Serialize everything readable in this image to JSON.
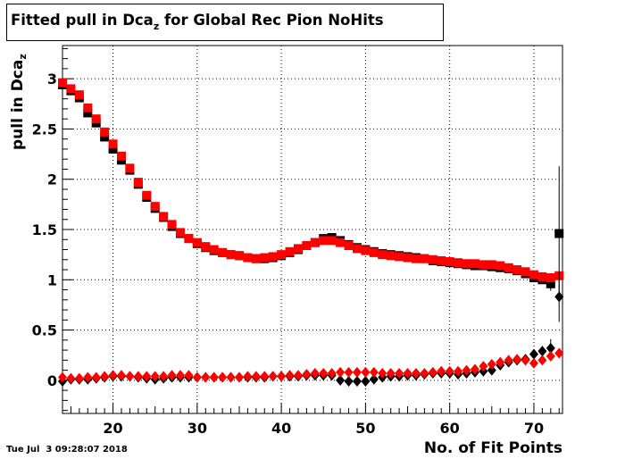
{
  "chart_data": {
    "type": "scatter",
    "title_main": "Fitted pull in Dca",
    "title_sub": "z",
    "title_rest": " for Global Rec Pion NoHits",
    "ylabel_main": "pull in Dca",
    "ylabel_sub": "z",
    "xlabel": "No. of Fit Points",
    "xlim": [
      14,
      73.4
    ],
    "ylim": [
      -0.33,
      3.33
    ],
    "grid": true,
    "x_ticks": [
      20,
      30,
      40,
      50,
      60,
      70
    ],
    "y_ticks": [
      0,
      0.5,
      1,
      1.5,
      2,
      2.5,
      3
    ],
    "x_tick_labels": [
      "20",
      "30",
      "40",
      "50",
      "60",
      "70"
    ],
    "y_tick_labels": [
      "0",
      "0.5",
      "1",
      "1.5",
      "2",
      "2.5",
      "3"
    ],
    "series": [
      {
        "marker": "square",
        "color": "#000000",
        "x": [
          14,
          15,
          16,
          17,
          18,
          19,
          20,
          21,
          22,
          23,
          24,
          25,
          26,
          27,
          28,
          29,
          30,
          31,
          32,
          33,
          34,
          35,
          36,
          37,
          38,
          39,
          40,
          41,
          42,
          43,
          44,
          45,
          46,
          47,
          48,
          49,
          50,
          51,
          52,
          53,
          54,
          55,
          56,
          57,
          58,
          59,
          60,
          61,
          62,
          63,
          64,
          65,
          66,
          67,
          68,
          69,
          70,
          71,
          72,
          73
        ],
        "y": [
          2.94,
          2.88,
          2.81,
          2.66,
          2.56,
          2.42,
          2.3,
          2.19,
          2.09,
          1.95,
          1.82,
          1.71,
          1.62,
          1.53,
          1.46,
          1.41,
          1.36,
          1.32,
          1.29,
          1.27,
          1.25,
          1.24,
          1.22,
          1.21,
          1.21,
          1.22,
          1.24,
          1.27,
          1.3,
          1.34,
          1.37,
          1.41,
          1.42,
          1.39,
          1.35,
          1.32,
          1.3,
          1.28,
          1.26,
          1.25,
          1.24,
          1.23,
          1.22,
          1.21,
          1.19,
          1.18,
          1.17,
          1.16,
          1.15,
          1.14,
          1.14,
          1.13,
          1.12,
          1.11,
          1.09,
          1.06,
          1.02,
          1.0,
          0.96,
          1.46
        ],
        "err": [
          0,
          0,
          0,
          0,
          0,
          0,
          0,
          0,
          0,
          0,
          0,
          0,
          0,
          0,
          0,
          0,
          0,
          0,
          0,
          0,
          0,
          0,
          0,
          0,
          0,
          0,
          0,
          0,
          0,
          0,
          0,
          0,
          0,
          0,
          0,
          0,
          0,
          0,
          0,
          0,
          0,
          0,
          0,
          0,
          0,
          0,
          0,
          0,
          0,
          0,
          0,
          0,
          0,
          0,
          0,
          0.02,
          0.03,
          0.04,
          0.07,
          0.67
        ]
      },
      {
        "marker": "square",
        "color": "#ff0000",
        "x": [
          14,
          15,
          16,
          17,
          18,
          19,
          20,
          21,
          22,
          23,
          24,
          25,
          26,
          27,
          28,
          29,
          30,
          31,
          32,
          33,
          34,
          35,
          36,
          37,
          38,
          39,
          40,
          41,
          42,
          43,
          44,
          45,
          46,
          47,
          48,
          49,
          50,
          51,
          52,
          53,
          54,
          55,
          56,
          57,
          58,
          59,
          60,
          61,
          62,
          63,
          64,
          65,
          66,
          67,
          68,
          69,
          70,
          71,
          72,
          73
        ],
        "y": [
          2.96,
          2.9,
          2.84,
          2.71,
          2.6,
          2.47,
          2.35,
          2.23,
          2.11,
          1.97,
          1.84,
          1.73,
          1.63,
          1.55,
          1.47,
          1.41,
          1.37,
          1.33,
          1.3,
          1.27,
          1.25,
          1.24,
          1.22,
          1.21,
          1.22,
          1.23,
          1.25,
          1.28,
          1.31,
          1.34,
          1.37,
          1.39,
          1.39,
          1.37,
          1.34,
          1.31,
          1.29,
          1.27,
          1.25,
          1.24,
          1.23,
          1.22,
          1.21,
          1.21,
          1.2,
          1.19,
          1.18,
          1.17,
          1.16,
          1.16,
          1.15,
          1.15,
          1.14,
          1.12,
          1.1,
          1.08,
          1.05,
          1.03,
          1.02,
          1.04
        ],
        "err": []
      },
      {
        "marker": "diamond",
        "color": "#000000",
        "x": [
          14,
          15,
          16,
          17,
          18,
          19,
          20,
          21,
          22,
          23,
          24,
          25,
          26,
          27,
          28,
          29,
          30,
          31,
          32,
          33,
          34,
          35,
          36,
          37,
          38,
          39,
          40,
          41,
          42,
          43,
          44,
          45,
          46,
          47,
          48,
          49,
          50,
          51,
          52,
          53,
          54,
          55,
          56,
          57,
          58,
          59,
          60,
          61,
          62,
          63,
          64,
          65,
          66,
          67,
          68,
          69,
          70,
          71,
          72,
          73
        ],
        "y": [
          -0.01,
          0.01,
          0.01,
          0.01,
          0.02,
          0.03,
          0.04,
          0.04,
          0.04,
          0.03,
          0.02,
          0.01,
          0.02,
          0.03,
          0.03,
          0.03,
          0.03,
          0.03,
          0.03,
          0.03,
          0.03,
          0.03,
          0.03,
          0.03,
          0.03,
          0.04,
          0.04,
          0.04,
          0.04,
          0.05,
          0.05,
          0.05,
          0.05,
          0.0,
          -0.01,
          -0.01,
          -0.01,
          0.01,
          0.03,
          0.04,
          0.04,
          0.05,
          0.05,
          0.06,
          0.07,
          0.07,
          0.07,
          0.06,
          0.07,
          0.08,
          0.09,
          0.1,
          0.15,
          0.18,
          0.2,
          0.21,
          0.26,
          0.29,
          0.32,
          0.83
        ],
        "err": [
          0,
          0,
          0,
          0,
          0,
          0,
          0,
          0,
          0,
          0,
          0,
          0,
          0,
          0,
          0,
          0,
          0,
          0,
          0,
          0,
          0,
          0,
          0,
          0,
          0,
          0,
          0,
          0,
          0,
          0,
          0,
          0,
          0,
          0,
          0,
          0,
          0,
          0,
          0,
          0,
          0,
          0,
          0,
          0,
          0,
          0,
          0,
          0,
          0,
          0,
          0,
          0,
          0,
          0,
          0,
          0,
          0.03,
          0.05,
          0.09,
          0.25
        ]
      },
      {
        "marker": "diamond",
        "color": "#ff0000",
        "x": [
          14,
          15,
          16,
          17,
          18,
          19,
          20,
          21,
          22,
          23,
          24,
          25,
          26,
          27,
          28,
          29,
          30,
          31,
          32,
          33,
          34,
          35,
          36,
          37,
          38,
          39,
          40,
          41,
          42,
          43,
          44,
          45,
          46,
          47,
          48,
          49,
          50,
          51,
          52,
          53,
          54,
          55,
          56,
          57,
          58,
          59,
          60,
          61,
          62,
          63,
          64,
          65,
          66,
          67,
          68,
          69,
          70,
          71,
          72,
          73
        ],
        "y": [
          0.03,
          0.02,
          0.02,
          0.03,
          0.03,
          0.04,
          0.05,
          0.05,
          0.04,
          0.04,
          0.04,
          0.04,
          0.04,
          0.05,
          0.05,
          0.05,
          0.03,
          0.03,
          0.03,
          0.03,
          0.03,
          0.03,
          0.04,
          0.04,
          0.04,
          0.04,
          0.04,
          0.05,
          0.05,
          0.06,
          0.07,
          0.07,
          0.07,
          0.08,
          0.08,
          0.08,
          0.08,
          0.08,
          0.07,
          0.07,
          0.07,
          0.07,
          0.07,
          0.07,
          0.08,
          0.09,
          0.09,
          0.09,
          0.1,
          0.11,
          0.14,
          0.16,
          0.18,
          0.2,
          0.21,
          0.2,
          0.17,
          0.2,
          0.24,
          0.27
        ],
        "err": []
      }
    ]
  },
  "timestamp": "Tue Jul  3 09:28:07 2018"
}
